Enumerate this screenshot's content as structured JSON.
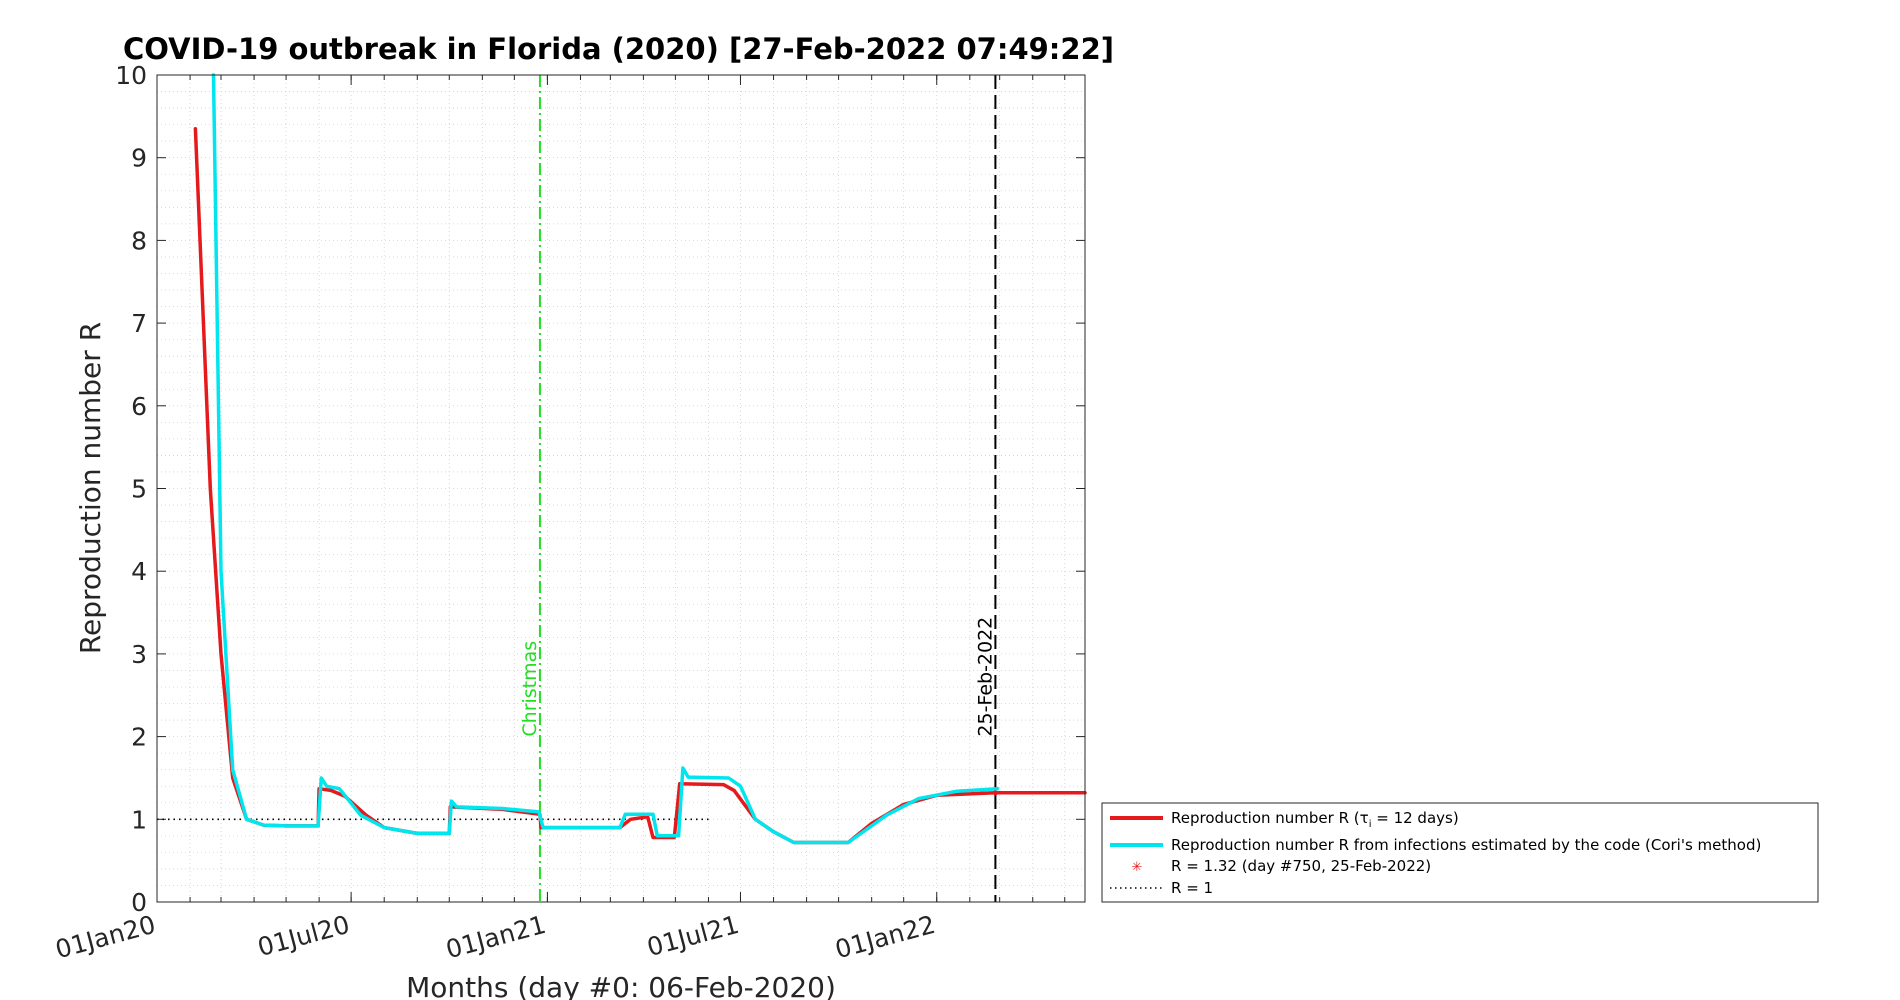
{
  "chart_data": {
    "type": "line",
    "title": "COVID-19 outbreak in Florida (2020) [27-Feb-2022 07:49:22]",
    "xlabel": "Months (day #0: 06-Feb-2020)",
    "ylabel": "Reproduction number R",
    "xlim": [
      "2020-01-01",
      "2022-05-20"
    ],
    "ylim": [
      0,
      10
    ],
    "y_ticks": [
      0,
      1,
      2,
      3,
      4,
      5,
      6,
      7,
      8,
      9,
      10
    ],
    "x_ticks": [
      {
        "date": "2020-01-01",
        "label": "01Jan20"
      },
      {
        "date": "2020-07-01",
        "label": "01Jul20"
      },
      {
        "date": "2021-01-01",
        "label": "01Jan21"
      },
      {
        "date": "2021-07-01",
        "label": "01Jul21"
      },
      {
        "date": "2022-01-01",
        "label": "01Jan22"
      }
    ],
    "grid": "minor-dotted",
    "legend_position": "outside-right",
    "series": [
      {
        "name": "Reproduction number R",
        "name_subscript": "i",
        "name_tail": " = 12 days)",
        "color": "#e41a1c",
        "x": [
          "2020-02-06",
          "2020-02-20",
          "2020-03-01",
          "2020-03-12",
          "2020-03-25",
          "2020-04-10",
          "2020-05-01",
          "2020-05-31",
          "2020-06-01",
          "2020-06-12",
          "2020-06-25",
          "2020-07-15",
          "2020-08-01",
          "2020-09-01",
          "2020-10-01",
          "2020-10-02",
          "2020-10-20",
          "2020-11-20",
          "2020-12-25",
          "2020-12-26",
          "2021-01-20",
          "2021-03-10",
          "2021-03-20",
          "2021-04-05",
          "2021-04-10",
          "2021-04-30",
          "2021-05-05",
          "2021-06-15",
          "2021-06-25",
          "2021-07-15",
          "2021-08-01",
          "2021-08-20",
          "2021-09-10",
          "2021-10-10",
          "2021-11-01",
          "2021-12-01",
          "2022-01-01",
          "2022-02-25",
          "2022-05-20"
        ],
        "values": [
          9.35,
          5.0,
          3.0,
          1.5,
          1.0,
          0.93,
          0.92,
          0.92,
          1.37,
          1.35,
          1.28,
          1.05,
          0.9,
          0.83,
          0.83,
          1.15,
          1.14,
          1.12,
          1.06,
          0.9,
          0.9,
          0.9,
          1.0,
          1.03,
          0.78,
          0.78,
          1.43,
          1.42,
          1.35,
          1.0,
          0.85,
          0.72,
          0.72,
          0.72,
          0.95,
          1.18,
          1.29,
          1.32,
          1.32
        ]
      },
      {
        "name": "Reproduction number R from infections estimated by the code (Cori's method)",
        "color": "#00e5ee",
        "x": [
          "2020-02-23",
          "2020-03-01",
          "2020-03-12",
          "2020-03-25",
          "2020-04-10",
          "2020-05-01",
          "2020-05-31",
          "2020-06-03",
          "2020-06-08",
          "2020-06-20",
          "2020-07-10",
          "2020-08-01",
          "2020-09-01",
          "2020-10-01",
          "2020-10-03",
          "2020-10-08",
          "2020-11-20",
          "2020-12-24",
          "2020-12-28",
          "2021-01-20",
          "2021-03-10",
          "2021-03-15",
          "2021-04-10",
          "2021-04-14",
          "2021-05-04",
          "2021-05-08",
          "2021-05-13",
          "2021-06-20",
          "2021-07-01",
          "2021-07-15",
          "2021-08-01",
          "2021-08-20",
          "2021-10-10",
          "2021-11-15",
          "2021-12-15",
          "2022-01-20",
          "2022-02-27"
        ],
        "values": [
          10.0,
          4.0,
          1.6,
          1.0,
          0.93,
          0.92,
          0.92,
          1.5,
          1.4,
          1.37,
          1.05,
          0.9,
          0.83,
          0.83,
          1.22,
          1.15,
          1.13,
          1.09,
          0.9,
          0.9,
          0.9,
          1.06,
          1.06,
          0.8,
          0.8,
          1.62,
          1.51,
          1.5,
          1.4,
          1.0,
          0.85,
          0.72,
          0.72,
          1.05,
          1.25,
          1.34,
          1.37
        ]
      }
    ],
    "marker": {
      "label": "R = 1.32 (day #750, 25-Feb-2022)",
      "date": "2022-02-25",
      "value": 1.32,
      "color": "#e41a1c"
    },
    "reference_line": {
      "label": "R = 1",
      "value": 1
    },
    "vlines": [
      {
        "date": "2020-12-25",
        "label": "Christmas",
        "color": "#22dd22"
      },
      {
        "date": "2022-02-25",
        "label": "25-Feb-2022",
        "color": "#000000"
      }
    ]
  }
}
